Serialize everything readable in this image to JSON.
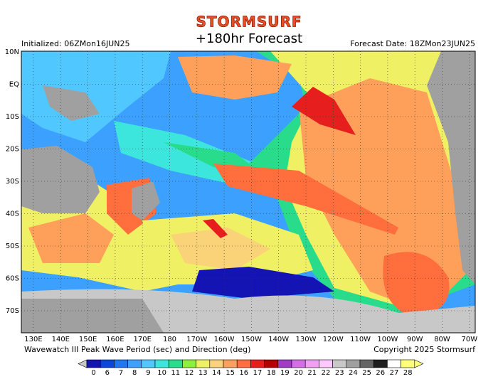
{
  "header": {
    "brand": "STORMSURF",
    "title": "+180hr Forecast",
    "initialized": "Initialized: 06ZMon16JUN25",
    "forecast_date": "Forecast Date: 18ZMon23JUN25"
  },
  "map": {
    "lat_labels": [
      "10N",
      "EQ",
      "10S",
      "20S",
      "30S",
      "40S",
      "50S",
      "60S",
      "70S"
    ],
    "lon_labels": [
      "130E",
      "140E",
      "150E",
      "160E",
      "170E",
      "180",
      "170W",
      "160W",
      "150W",
      "140W",
      "130W",
      "120W",
      "110W",
      "100W",
      "90W",
      "80W",
      "70W"
    ]
  },
  "footer": {
    "caption": "Wavewatch III Peak Wave Period (sec) and Direction (deg)",
    "copyright": "Copyright 2025 Stormsurf"
  },
  "legend": {
    "entries": [
      {
        "label": "0",
        "color": "#1414b4"
      },
      {
        "label": "6",
        "color": "#0a46dc"
      },
      {
        "label": "7",
        "color": "#1e78f0"
      },
      {
        "label": "8",
        "color": "#3ca0ff"
      },
      {
        "label": "9",
        "color": "#50c8ff"
      },
      {
        "label": "10",
        "color": "#3ce6dc"
      },
      {
        "label": "11",
        "color": "#28dc8c"
      },
      {
        "label": "12",
        "color": "#8cf03c"
      },
      {
        "label": "13",
        "color": "#f0f064"
      },
      {
        "label": "14",
        "color": "#fad278"
      },
      {
        "label": "15",
        "color": "#ffa05a"
      },
      {
        "label": "16",
        "color": "#ff6e3c"
      },
      {
        "label": "17",
        "color": "#e61e1e"
      },
      {
        "label": "18",
        "color": "#b40000"
      },
      {
        "label": "19",
        "color": "#a03cc8"
      },
      {
        "label": "20",
        "color": "#d26ee6"
      },
      {
        "label": "21",
        "color": "#f0a0f0"
      },
      {
        "label": "22",
        "color": "#ffc8ff"
      },
      {
        "label": "23",
        "color": "#c8c8c8"
      },
      {
        "label": "24",
        "color": "#a0a0a0"
      },
      {
        "label": "25",
        "color": "#646464"
      },
      {
        "label": "26",
        "color": "#1e1e1e"
      },
      {
        "label": "27",
        "color": "#ffffff"
      },
      {
        "label": "28",
        "color": "#ffff78"
      }
    ]
  }
}
